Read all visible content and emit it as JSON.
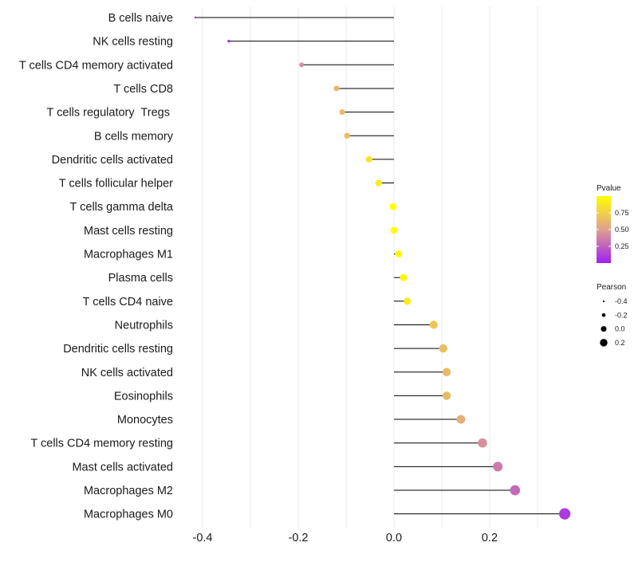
{
  "chart_data": {
    "type": "lollipop",
    "categories": [
      "B cells naive",
      "NK cells resting",
      "T cells CD4 memory activated",
      "T cells CD8",
      "T cells regulatory  Tregs ",
      "B cells memory",
      "Dendritic cells activated",
      "T cells follicular helper",
      "T cells gamma delta",
      "Mast cells resting",
      "Macrophages M1",
      "Plasma cells",
      "T cells CD4 naive",
      "Neutrophils",
      "Dendritic cells resting",
      "NK cells activated",
      "Eosinophils",
      "Monocytes",
      "T cells CD4 memory resting",
      "Mast cells activated",
      "Macrophages M2",
      "Macrophages M0"
    ],
    "pearson": [
      -0.415,
      -0.345,
      -0.193,
      -0.12,
      -0.108,
      -0.098,
      -0.052,
      -0.032,
      -0.002,
      0.0,
      0.01,
      0.02,
      0.028,
      0.083,
      0.103,
      0.11,
      0.11,
      0.14,
      0.185,
      0.217,
      0.253,
      0.357
    ],
    "pvalue": [
      0.04,
      0.07,
      0.42,
      0.62,
      0.64,
      0.66,
      0.86,
      0.9,
      1.0,
      1.0,
      0.97,
      0.94,
      0.9,
      0.7,
      0.66,
      0.64,
      0.64,
      0.58,
      0.44,
      0.36,
      0.28,
      0.1
    ],
    "xlim": [
      -0.44,
      0.37
    ],
    "xticks": [
      "-0.4",
      "-0.2",
      "0.0",
      "0.2"
    ],
    "xtick_values": [
      -0.4,
      -0.2,
      0.0,
      0.2
    ],
    "grid": true,
    "color_legend": {
      "title": "Pvalue",
      "ticks": [
        "0.75",
        "0.50",
        "0.25"
      ],
      "tick_values": [
        0.75,
        0.5,
        0.25
      ],
      "range": [
        0.0,
        1.0
      ],
      "low_color": "#a020f0",
      "mid_color": "#e0a090",
      "high_color": "#ffff00"
    },
    "size_legend": {
      "title": "Pearson",
      "entries": [
        "-0.4",
        "-0.2",
        "0.0",
        "0.2"
      ],
      "entry_values": [
        -0.4,
        -0.2,
        0.0,
        0.2
      ]
    },
    "stem_color": "#000000"
  }
}
